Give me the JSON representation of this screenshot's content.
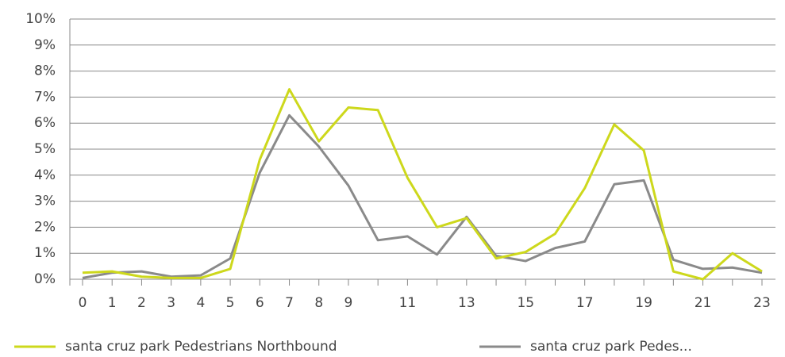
{
  "chart_data": {
    "type": "line",
    "categories": [
      "0",
      "1",
      "2",
      "3",
      "4",
      "5",
      "6",
      "7",
      "8",
      "9",
      null,
      "11",
      null,
      "13",
      null,
      "15",
      null,
      "17",
      null,
      "19",
      null,
      "21",
      null,
      "23"
    ],
    "series": [
      {
        "name": "santa cruz park Pedestrians Northbound",
        "color": "#cdd81c",
        "values": [
          0.25,
          0.3,
          0.1,
          0.05,
          0.05,
          0.4,
          4.6,
          7.3,
          5.3,
          6.6,
          6.5,
          3.9,
          2.0,
          2.35,
          0.8,
          1.05,
          1.75,
          3.5,
          5.95,
          4.95,
          0.3,
          0.0,
          1.0,
          0.3
        ]
      },
      {
        "name": "santa cruz park Pedes...",
        "color": "#8a8a8a",
        "values": [
          0.05,
          0.25,
          0.3,
          0.1,
          0.15,
          0.8,
          4.1,
          6.3,
          5.1,
          3.6,
          1.5,
          1.65,
          0.95,
          2.4,
          0.9,
          0.7,
          1.2,
          1.45,
          3.65,
          3.8,
          0.75,
          0.4,
          0.45,
          0.25
        ]
      }
    ],
    "ylim": [
      0,
      10
    ],
    "yticks": [
      {
        "value": 0,
        "label": "0%"
      },
      {
        "value": 1,
        "label": "1%"
      },
      {
        "value": 2,
        "label": "2%"
      },
      {
        "value": 3,
        "label": "3%"
      },
      {
        "value": 4,
        "label": "4%"
      },
      {
        "value": 5,
        "label": "5%"
      },
      {
        "value": 6,
        "label": "6%"
      },
      {
        "value": 7,
        "label": "7%"
      },
      {
        "value": 8,
        "label": "8%"
      },
      {
        "value": 9,
        "label": "9%"
      },
      {
        "value": 10,
        "label": "10%"
      }
    ],
    "grid": true
  }
}
